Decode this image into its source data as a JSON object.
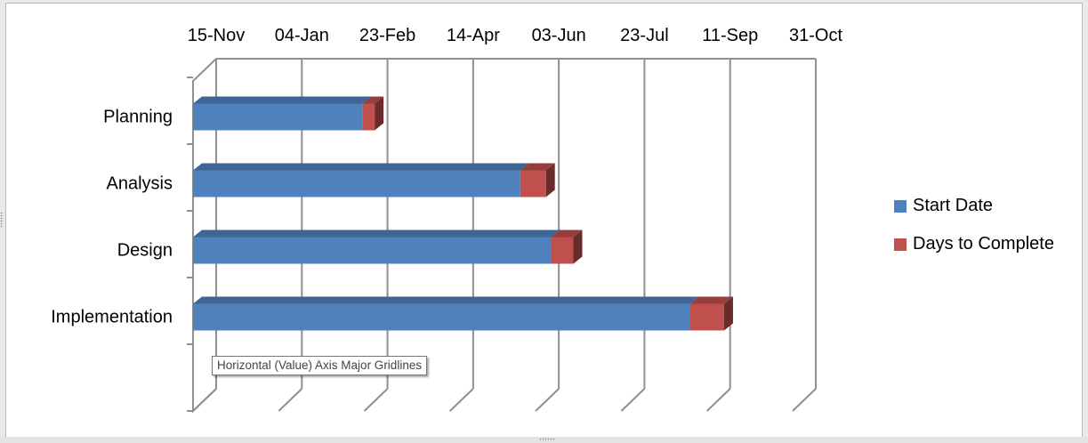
{
  "chart_data": {
    "type": "bar",
    "orientation": "horizontal",
    "stacked": true,
    "style": "3d",
    "categories": [
      "Planning",
      "Analysis",
      "Design",
      "Implementation"
    ],
    "x_axis": {
      "type": "date",
      "position": "top",
      "tick_labels": [
        "15-Nov",
        "04-Jan",
        "23-Feb",
        "14-Apr",
        "03-Jun",
        "23-Jul",
        "11-Sep",
        "31-Oct"
      ],
      "tick_step_days": 50,
      "range": [
        "15-Nov",
        "31-Oct"
      ]
    },
    "grid": "vertical major gridlines on",
    "series": [
      {
        "name": "Start Date",
        "color": "#4f81bd",
        "values": [
          "15-Nov",
          "15-Nov",
          "15-Nov",
          "15-Nov"
        ]
      },
      {
        "name": "Days to Complete",
        "color": "#c0504d",
        "starts": [
          "22-Feb",
          "25-May",
          "12-Jun",
          "01-Sep"
        ],
        "ends": [
          "01-Mar",
          "09-Jun",
          "25-Jun",
          "21-Sep"
        ]
      }
    ],
    "legend": {
      "position": "right",
      "entries": [
        "Start Date",
        "Days to Complete"
      ]
    }
  },
  "tooltip": {
    "text": "Horizontal (Value) Axis Major Gridlines"
  }
}
